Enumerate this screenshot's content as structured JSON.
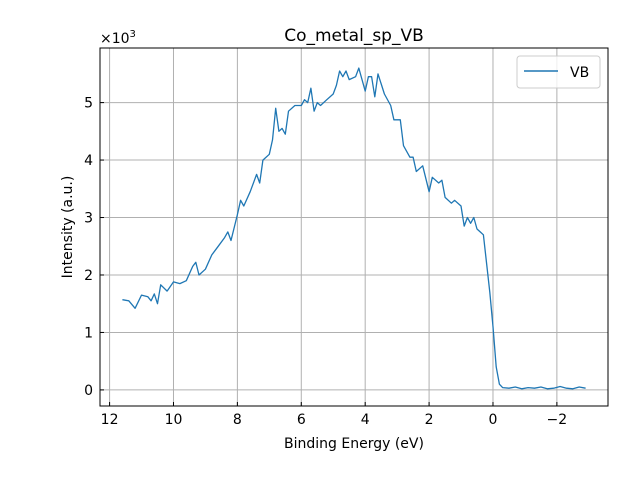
{
  "chart_data": {
    "type": "line",
    "title": "Co_metal_sp_VB",
    "xlabel": "Binding Energy (eV)",
    "ylabel": "Intensity (a.u.)",
    "y_multiplier_label": "×10³",
    "y_multiplier_base": "×10",
    "y_multiplier_exp": "3",
    "xlim": [
      12.3,
      -3.6
    ],
    "ylim": [
      -0.28,
      5.95
    ],
    "x_inverted": true,
    "grid": true,
    "legend_placement": "top-right",
    "x_ticks": [
      12,
      10,
      8,
      6,
      4,
      2,
      0,
      -2
    ],
    "x_tick_labels": [
      "12",
      "10",
      "8",
      "6",
      "4",
      "2",
      "0",
      "−2"
    ],
    "y_ticks": [
      0,
      1,
      2,
      3,
      4,
      5
    ],
    "y_tick_labels": [
      "0",
      "1",
      "2",
      "3",
      "4",
      "5"
    ],
    "series": [
      {
        "name": "VB",
        "color": "#1f77b4",
        "x": [
          11.6,
          11.4,
          11.2,
          11.0,
          10.8,
          10.7,
          10.6,
          10.5,
          10.4,
          10.2,
          10.0,
          9.8,
          9.6,
          9.4,
          9.3,
          9.2,
          9.0,
          8.8,
          8.6,
          8.4,
          8.3,
          8.2,
          8.0,
          7.9,
          7.8,
          7.6,
          7.4,
          7.3,
          7.2,
          7.0,
          6.9,
          6.8,
          6.7,
          6.6,
          6.5,
          6.4,
          6.2,
          6.0,
          5.9,
          5.8,
          5.7,
          5.6,
          5.5,
          5.4,
          5.2,
          5.0,
          4.9,
          4.8,
          4.7,
          4.6,
          4.5,
          4.3,
          4.2,
          4.1,
          4.0,
          3.9,
          3.8,
          3.7,
          3.6,
          3.4,
          3.2,
          3.1,
          2.9,
          2.8,
          2.6,
          2.5,
          2.4,
          2.2,
          2.0,
          1.9,
          1.7,
          1.6,
          1.5,
          1.3,
          1.2,
          1.0,
          0.9,
          0.8,
          0.7,
          0.6,
          0.5,
          0.4,
          0.3,
          0.2,
          0.1,
          0.0,
          -0.1,
          -0.2,
          -0.3,
          -0.5,
          -0.7,
          -0.9,
          -1.1,
          -1.3,
          -1.5,
          -1.7,
          -1.9,
          -2.1,
          -2.3,
          -2.5,
          -2.7,
          -2.9
        ],
        "y": [
          1.57,
          1.55,
          1.42,
          1.65,
          1.62,
          1.55,
          1.67,
          1.5,
          1.83,
          1.72,
          1.88,
          1.85,
          1.9,
          2.15,
          2.22,
          2.0,
          2.1,
          2.35,
          2.5,
          2.65,
          2.75,
          2.6,
          3.05,
          3.3,
          3.2,
          3.45,
          3.75,
          3.6,
          4.0,
          4.1,
          4.35,
          4.9,
          4.5,
          4.55,
          4.45,
          4.85,
          4.95,
          4.95,
          5.05,
          5.0,
          5.25,
          4.85,
          5.0,
          4.95,
          5.05,
          5.15,
          5.3,
          5.55,
          5.45,
          5.55,
          5.4,
          5.45,
          5.6,
          5.4,
          5.2,
          5.45,
          5.45,
          5.1,
          5.5,
          5.15,
          4.95,
          4.7,
          4.7,
          4.25,
          4.05,
          4.05,
          3.8,
          3.9,
          3.45,
          3.7,
          3.6,
          3.65,
          3.35,
          3.25,
          3.3,
          3.2,
          2.85,
          3.0,
          2.9,
          3.0,
          2.8,
          2.75,
          2.7,
          2.2,
          1.7,
          1.1,
          0.4,
          0.1,
          0.04,
          0.03,
          0.05,
          0.02,
          0.04,
          0.03,
          0.05,
          0.02,
          0.03,
          0.06,
          0.03,
          0.02,
          0.05,
          0.03
        ]
      }
    ]
  }
}
